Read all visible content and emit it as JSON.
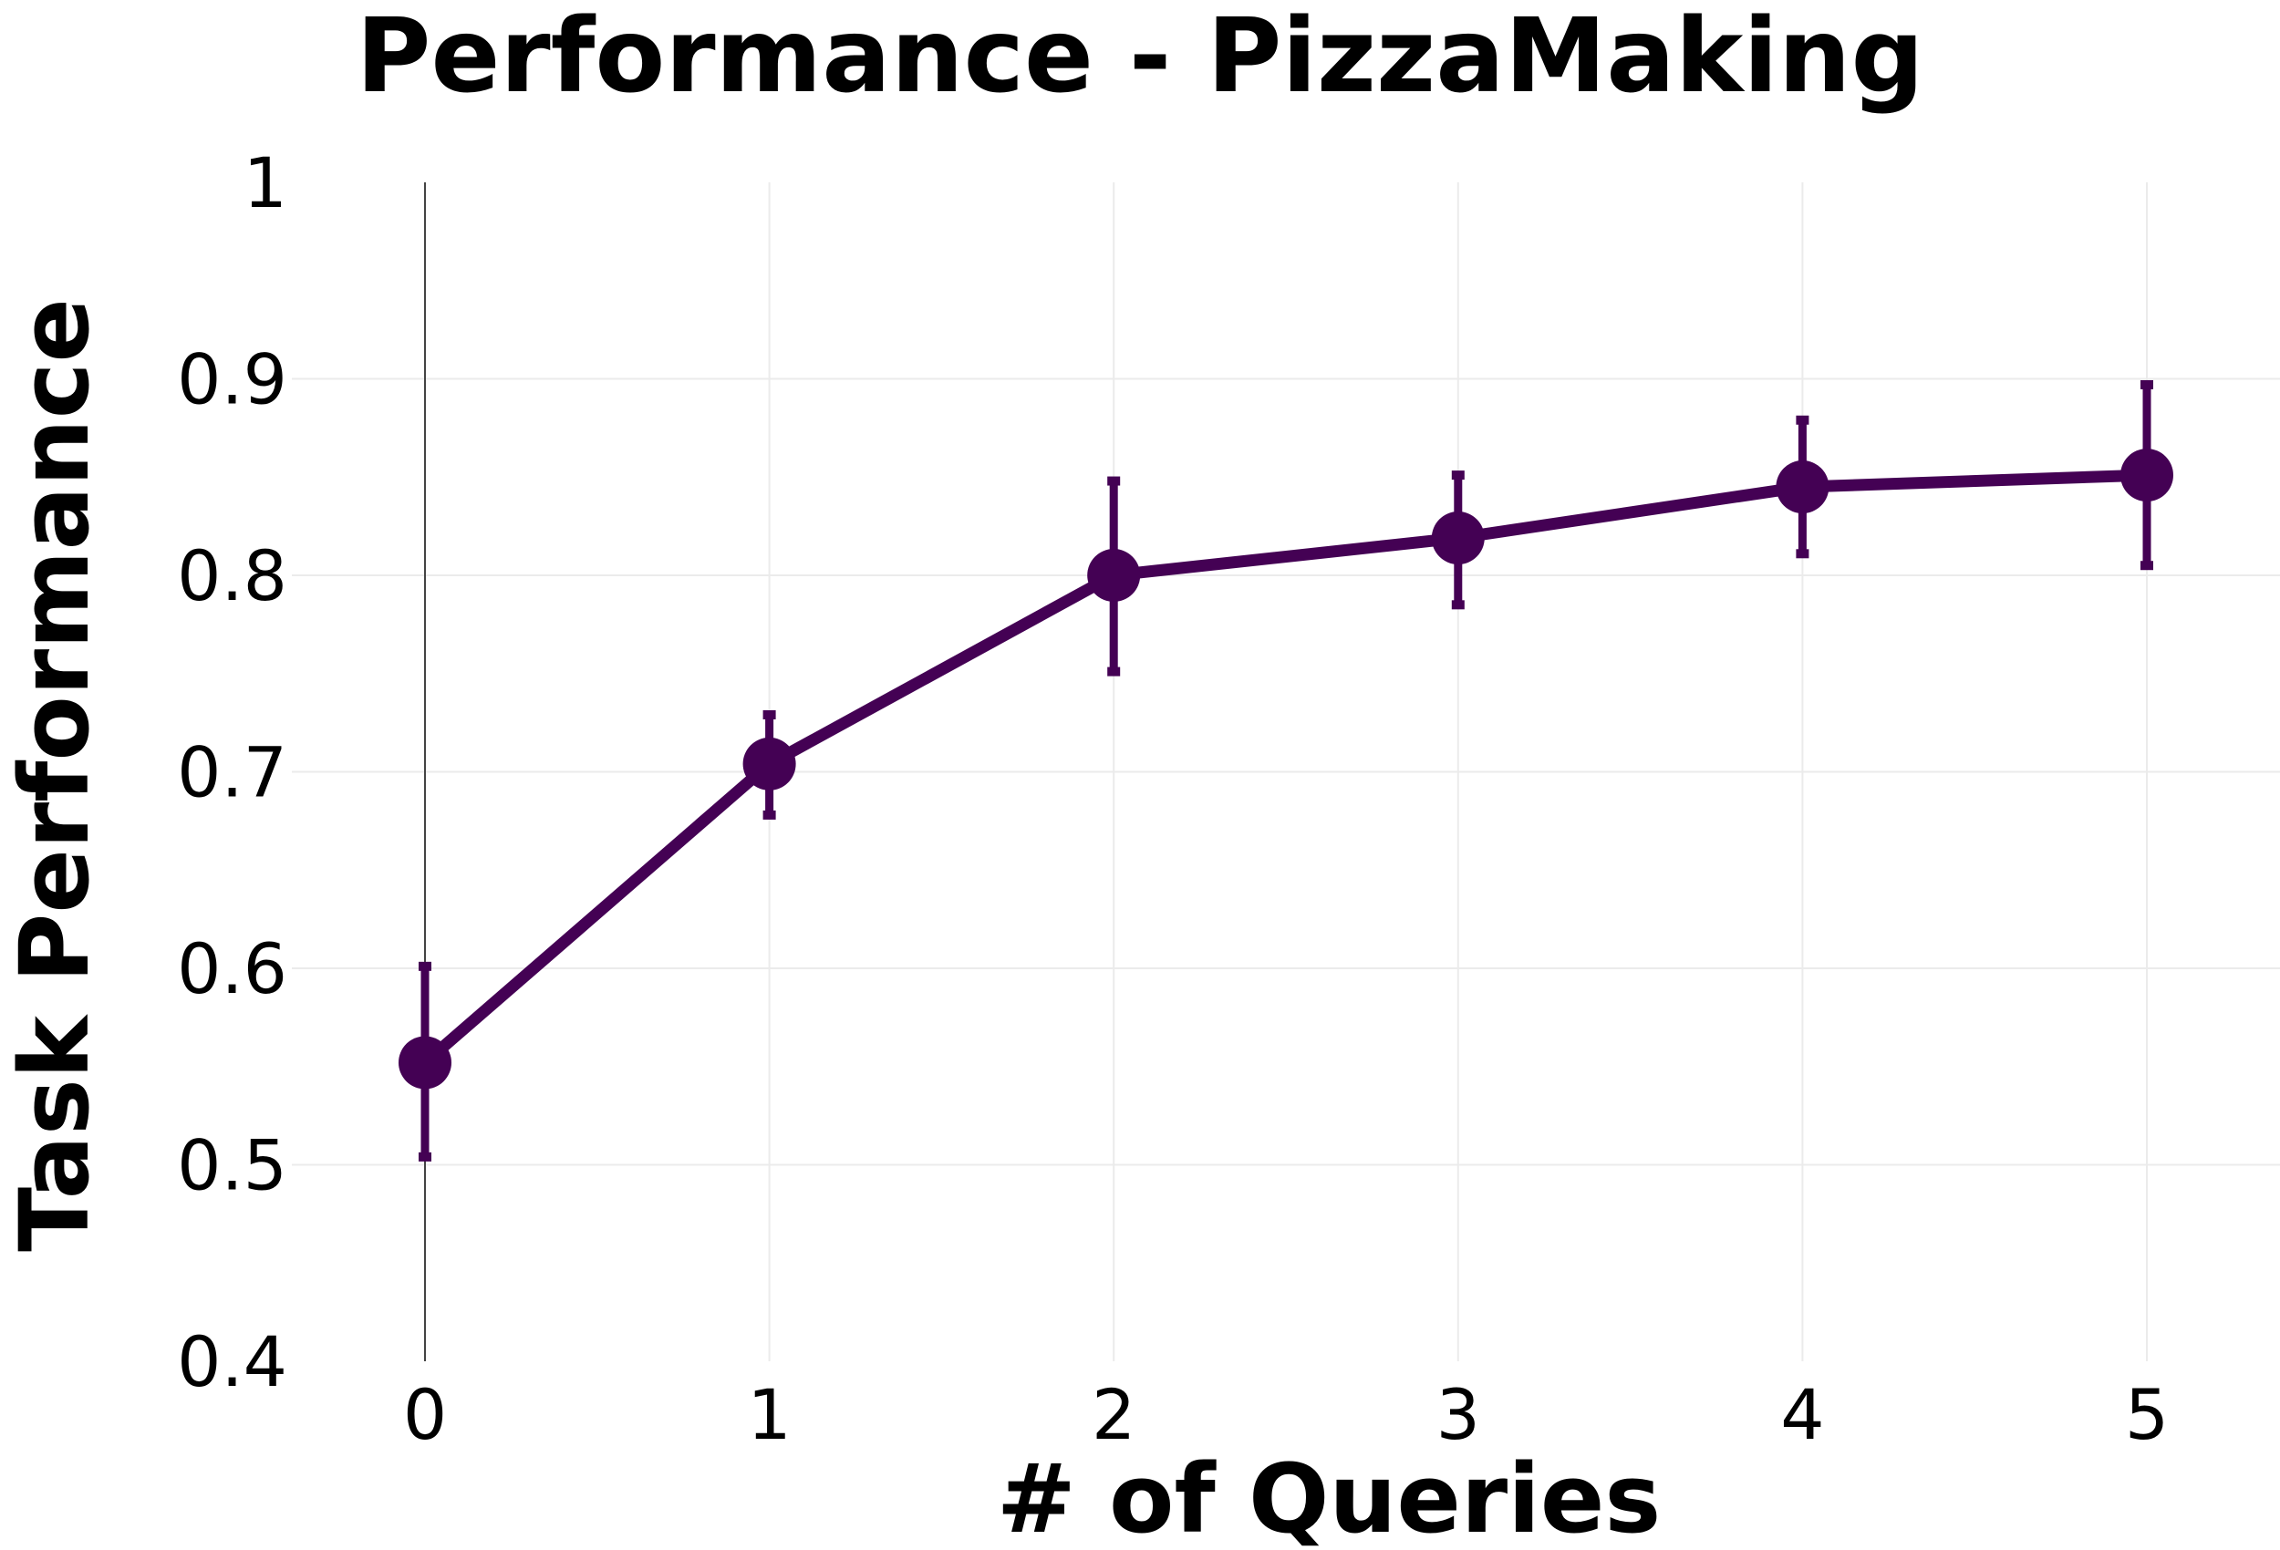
{
  "chart_data": {
    "type": "line",
    "title": "Performance - PizzaMaking",
    "xlabel": "# of Queries",
    "ylabel": "Task Performance",
    "x": [
      0,
      1,
      2,
      3,
      4,
      5
    ],
    "x_tick_labels": [
      "0",
      "1",
      "2",
      "3",
      "4",
      "5"
    ],
    "y_tick_labels": [
      "0.4",
      "0.5",
      "0.6",
      "0.7",
      "0.8",
      "0.9",
      "1"
    ],
    "y_ticks": [
      0.4,
      0.5,
      0.6,
      0.7,
      0.8,
      0.9,
      1.0
    ],
    "ylim": [
      0.4,
      1.0
    ],
    "xlim": [
      -0.5,
      5.35
    ],
    "grid": true,
    "series": [
      {
        "values": [
          0.552,
          0.704,
          0.8,
          0.819,
          0.845,
          0.851
        ],
        "error_low": [
          0.504,
          0.678,
          0.751,
          0.785,
          0.811,
          0.805
        ],
        "error_high": [
          0.601,
          0.729,
          0.848,
          0.851,
          0.879,
          0.897
        ],
        "color": "#440154"
      }
    ]
  }
}
